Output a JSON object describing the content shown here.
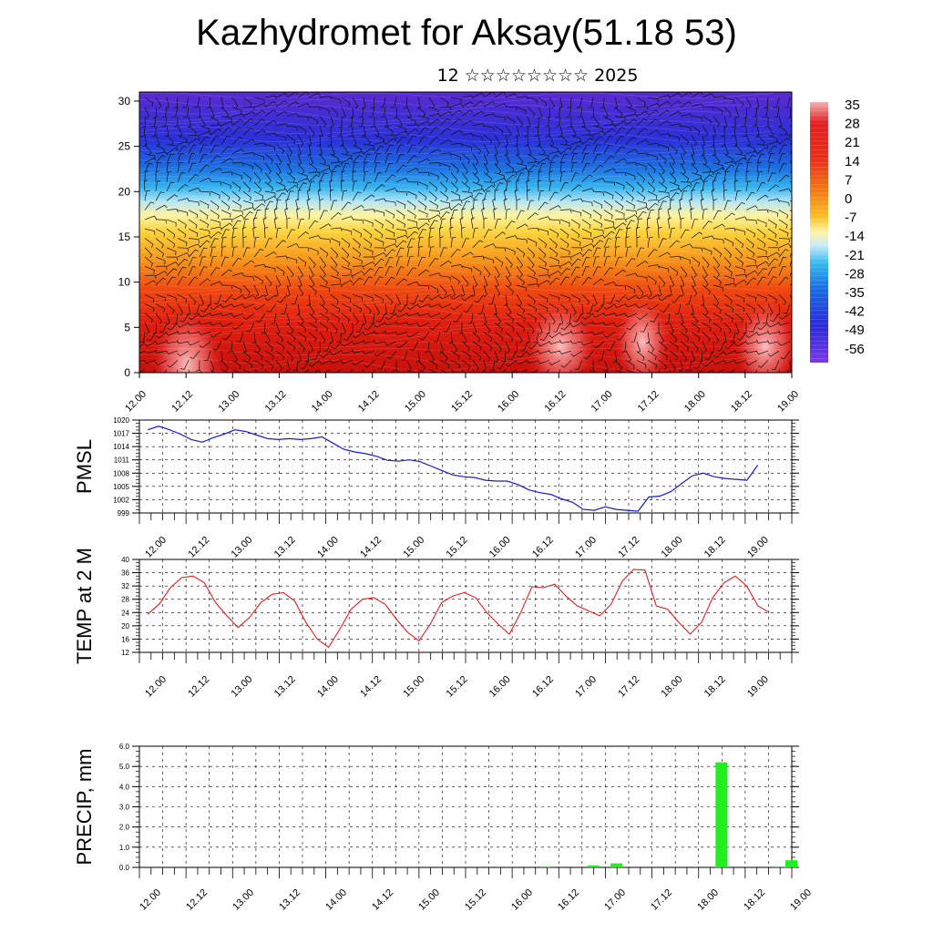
{
  "header": {
    "title": "Kazhydromet for Aksay(51.18 53)",
    "subtitle": "12 ☆☆☆☆☆☆☆☆ 2025"
  },
  "colors": {
    "pmsl_line": "#1a1acc",
    "temp_line": "#dd2222",
    "precip_bar": "#22ee22",
    "cold": "#3a1fd0",
    "warm": "#cc1a10"
  },
  "chart_data": [
    {
      "type": "heatmap",
      "title": "",
      "xlabel": "",
      "ylabel": "",
      "x_ticks": [
        "12.00",
        "12.12",
        "13.00",
        "13.12",
        "14.00",
        "14.12",
        "15.00",
        "15.12",
        "16.00",
        "16.12",
        "17.00",
        "17.12",
        "18.00",
        "18.12",
        "19.00"
      ],
      "y_ticks": [
        0,
        5,
        10,
        15,
        20,
        25,
        30
      ],
      "ylim": [
        0,
        31
      ],
      "colorbar_labels": [
        "35",
        "28",
        "21",
        "14",
        "7",
        "0",
        "-7",
        "-14",
        "-21",
        "-28",
        "-35",
        "-42",
        "-49",
        "-56"
      ],
      "overlay": "wind barbs",
      "grid": false
    },
    {
      "type": "line",
      "ylabel": "PMSL",
      "x_ticks": [
        "12.00",
        "12.12",
        "13.00",
        "13.12",
        "14.00",
        "14.12",
        "15.00",
        "15.12",
        "16.00",
        "16.12",
        "17.00",
        "17.12",
        "18.00",
        "18.12",
        "19.00"
      ],
      "y_ticks": [
        "1020",
        "1017",
        "1014",
        "1011",
        "1008",
        "1005",
        "1002",
        "999"
      ],
      "ylim": [
        999,
        1020
      ],
      "x": [
        0,
        0.125,
        0.25,
        0.375,
        0.5,
        0.625,
        0.75,
        0.875,
        1,
        1.125,
        1.25,
        1.375,
        1.5,
        1.625,
        1.75,
        1.875,
        2,
        2.125,
        2.25,
        2.375,
        2.5,
        2.625,
        2.75,
        2.875,
        3,
        3.125,
        3.25,
        3.375,
        3.5,
        3.625,
        3.75,
        3.875,
        4,
        4.125,
        4.25,
        4.375,
        4.5,
        4.625,
        4.75,
        4.875,
        5,
        5.125,
        5.25,
        5.375,
        5.5,
        5.625,
        5.75,
        5.875,
        6,
        6.125,
        6.25,
        6.375,
        6.5,
        6.625,
        6.75,
        6.875,
        7
      ],
      "series": [
        {
          "values": [
            1017.8,
            1018.6,
            1017.8,
            1016.8,
            1015.6,
            1015.0,
            1016.0,
            1016.8,
            1017.8,
            1017.4,
            1016.6,
            1015.8,
            1015.6,
            1015.8,
            1015.6,
            1015.8,
            1016.2,
            1014.8,
            1013.4,
            1012.8,
            1012.4,
            1011.8,
            1010.9,
            1010.7,
            1011.0,
            1010.6,
            1009.6,
            1008.6,
            1007.6,
            1007.2,
            1007.0,
            1006.4,
            1006.2,
            1006.2,
            1005.4,
            1004.2,
            1003.6,
            1003.2,
            1002.2,
            1001.4,
            999.8,
            999.6,
            1000.4,
            999.8,
            999.6,
            999.4,
            1002.6,
            1002.8,
            1003.8,
            1005.6,
            1007.4,
            1008.0,
            1007.2,
            1006.8,
            1006.6,
            1006.4,
            1009.8
          ]
        }
      ],
      "grid": true
    },
    {
      "type": "line",
      "ylabel": "TEMP at 2 M",
      "x_ticks": [
        "12.00",
        "12.12",
        "13.00",
        "13.12",
        "14.00",
        "14.12",
        "15.00",
        "15.12",
        "16.00",
        "16.12",
        "17.00",
        "17.12",
        "18.00",
        "18.12",
        "19.00"
      ],
      "y_ticks": [
        "40",
        "36",
        "32",
        "28",
        "24",
        "20",
        "16",
        "12"
      ],
      "ylim": [
        12,
        40
      ],
      "x": [
        0,
        0.125,
        0.25,
        0.375,
        0.5,
        0.625,
        0.75,
        0.875,
        1,
        1.125,
        1.25,
        1.375,
        1.5,
        1.625,
        1.75,
        1.875,
        2,
        2.125,
        2.25,
        2.375,
        2.5,
        2.625,
        2.75,
        2.875,
        3,
        3.125,
        3.25,
        3.375,
        3.5,
        3.625,
        3.75,
        3.875,
        4,
        4.125,
        4.25,
        4.375,
        4.5,
        4.625,
        4.75,
        4.875,
        5,
        5.125,
        5.25,
        5.375,
        5.5,
        5.625,
        5.75,
        5.875,
        6,
        6.125,
        6.25,
        6.375,
        6.5,
        6.625,
        6.75,
        6.875
      ],
      "series": [
        {
          "values": [
            23.5,
            26.5,
            31.5,
            34.5,
            35.0,
            33.0,
            27.0,
            23.0,
            19.5,
            22.5,
            27.0,
            29.5,
            30.0,
            27.5,
            21.0,
            16.0,
            13.5,
            19.0,
            25.0,
            28.0,
            28.5,
            26.5,
            22.0,
            18.0,
            15.5,
            20.5,
            27.0,
            29.0,
            30.0,
            28.5,
            24.0,
            20.5,
            17.5,
            24.0,
            31.8,
            31.5,
            32.5,
            29.0,
            26.0,
            24.5,
            23.0,
            26.5,
            33.5,
            37.0,
            36.8,
            26.0,
            25.0,
            21.0,
            17.5,
            21.0,
            28.5,
            33.0,
            35.0,
            32.0,
            26.0,
            24.0
          ]
        }
      ],
      "grid": true
    },
    {
      "type": "bar",
      "ylabel": "PRECIP, mm",
      "x_ticks": [
        "12.00",
        "12.12",
        "13.00",
        "13.12",
        "14.00",
        "14.12",
        "15.00",
        "15.12",
        "16.00",
        "16.12",
        "17.00",
        "17.12",
        "18.00",
        "18.12",
        "19.00"
      ],
      "y_ticks": [
        "6.0",
        "5.0",
        "4.0",
        "3.0",
        "2.0",
        "1.0",
        "0.0"
      ],
      "ylim": [
        0,
        6
      ],
      "x": [
        4.375,
        4.875,
        5.125,
        6.25,
        6.875,
        7.0
      ],
      "values": [
        0.05,
        0.1,
        0.2,
        5.2,
        0.05,
        0.35
      ],
      "grid": true
    }
  ]
}
